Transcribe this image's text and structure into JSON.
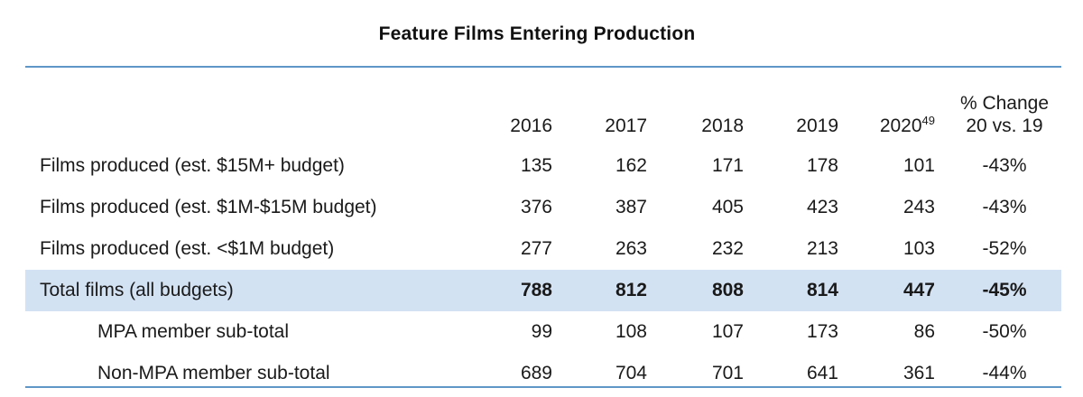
{
  "title": "Feature Films Entering Production",
  "columns": {
    "years": [
      "2016",
      "2017",
      "2018",
      "2019",
      "2020"
    ],
    "last_year_footnote": "49",
    "change_line1": "% Change",
    "change_line2": "20 vs. 19"
  },
  "rows": [
    {
      "label": "Films produced (est. $15M+ budget)",
      "values": [
        "135",
        "162",
        "171",
        "178",
        "101"
      ],
      "change": "-43%"
    },
    {
      "label": "Films produced (est. $1M-$15M budget)",
      "values": [
        "376",
        "387",
        "405",
        "423",
        "243"
      ],
      "change": "-43%"
    },
    {
      "label": "Films produced (est. <$1M budget)",
      "values": [
        "277",
        "263",
        "232",
        "213",
        "103"
      ],
      "change": "-52%"
    },
    {
      "label": "Total films (all budgets)",
      "values": [
        "788",
        "812",
        "808",
        "814",
        "447"
      ],
      "change": "-45%"
    },
    {
      "label": "MPA member sub-total",
      "values": [
        "99",
        "108",
        "107",
        "173",
        "86"
      ],
      "change": "-50%"
    },
    {
      "label": "Non-MPA member sub-total",
      "values": [
        "689",
        "704",
        "701",
        "641",
        "361"
      ],
      "change": "-44%"
    }
  ],
  "colors": {
    "rule": "#5f97c7",
    "total_row_background": "#d3e2f3"
  }
}
